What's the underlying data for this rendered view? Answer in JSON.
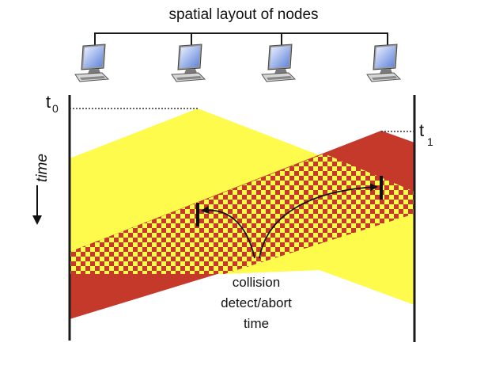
{
  "diagram": {
    "title": "spatial layout of nodes",
    "time_axis_label": "time",
    "t0": {
      "letter": "t",
      "subscript": "0"
    },
    "t1": {
      "letter": "t",
      "subscript": "1"
    },
    "callout_lines": [
      "collision",
      "detect/abort",
      "time"
    ],
    "node_count": 4,
    "colors": {
      "yellow": "#fefb4d",
      "red": "#c4392a",
      "line": "#1a1a1a"
    },
    "icons": [
      "computer-icon",
      "computer-icon",
      "computer-icon",
      "computer-icon"
    ]
  }
}
